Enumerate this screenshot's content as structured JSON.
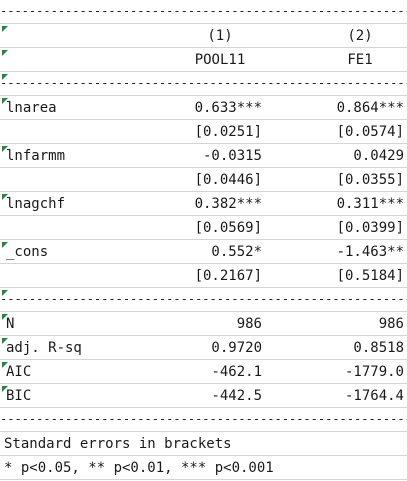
{
  "separator": "------------------------------------------------------------",
  "header": {
    "num_1": "(1)",
    "num_2": "(2)",
    "model_1": "POOL11",
    "model_2": "FE1"
  },
  "rows": [
    {
      "label": "lnarea",
      "v1": "0.633***",
      "v2": "0.864***"
    },
    {
      "label": "",
      "v1": "[0.0251]",
      "v2": "[0.0574]"
    },
    {
      "label": "lnfarmm",
      "v1": "-0.0315",
      "v2": "0.0429"
    },
    {
      "label": "",
      "v1": "[0.0446]",
      "v2": "[0.0355]"
    },
    {
      "label": "lnagchf",
      "v1": "0.382***",
      "v2": "0.311***"
    },
    {
      "label": "",
      "v1": "[0.0569]",
      "v2": "[0.0399]"
    },
    {
      "label": "_cons",
      "v1": "0.552*",
      "v2": "-1.463**"
    },
    {
      "label": "",
      "v1": "[0.2167]",
      "v2": "[0.5184]"
    }
  ],
  "stats": [
    {
      "label": "N",
      "v1": "986",
      "v2": "986"
    },
    {
      "label": "adj. R-sq",
      "v1": "0.9720",
      "v2": "0.8518"
    },
    {
      "label": "AIC",
      "v1": "-462.1",
      "v2": "-1779.0"
    },
    {
      "label": "BIC",
      "v1": "-442.5",
      "v2": "-1764.4"
    }
  ],
  "notes": {
    "line1": "Standard errors in brackets",
    "line2": "* p<0.05, ** p<0.01, *** p<0.001"
  }
}
